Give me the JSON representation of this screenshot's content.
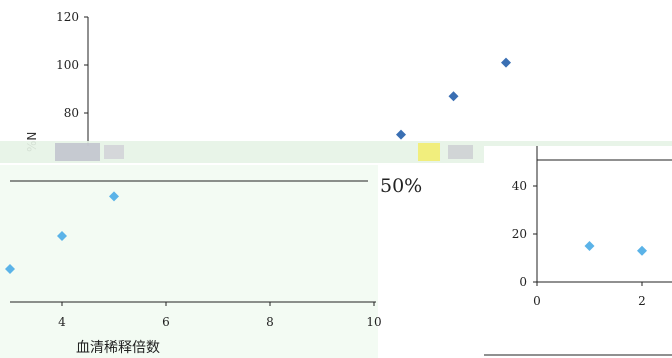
{
  "chart_data": [
    {
      "panel": "back-upper",
      "type": "scatter",
      "title": "",
      "xlabel": "",
      "ylabel": "",
      "ylabel_fragment": "%N",
      "x": [
        10.5,
        12.0,
        13.5
      ],
      "y": [
        71,
        87,
        101
      ],
      "ylim": [
        60,
        120
      ],
      "yticks": [
        "120",
        "100",
        "80"
      ],
      "marker_color": "#3a6fb3",
      "grid": false
    },
    {
      "panel": "front-left",
      "type": "scatter",
      "title": "",
      "xlabel": "血清稀释倍数",
      "ylabel": "",
      "x": [
        3,
        4,
        5
      ],
      "y": [
        10,
        20,
        32
      ],
      "xlim": [
        3,
        10
      ],
      "xticks": [
        "4",
        "6",
        "8",
        "10"
      ],
      "reference_line": {
        "label": "50%"
      },
      "marker_color": "#5bb3e8",
      "grid": false
    },
    {
      "panel": "front-right",
      "type": "scatter",
      "title": "",
      "xlabel": "",
      "ylabel": "",
      "x": [
        1,
        2
      ],
      "y": [
        15,
        13
      ],
      "xlim": [
        0,
        2.6
      ],
      "ylim": [
        0,
        55
      ],
      "xticks": [
        "0",
        "2"
      ],
      "yticks": [
        "40",
        "20",
        "0"
      ],
      "reference_line": {
        "label": ""
      },
      "marker_color": "#5bb3e8",
      "grid": false
    }
  ]
}
